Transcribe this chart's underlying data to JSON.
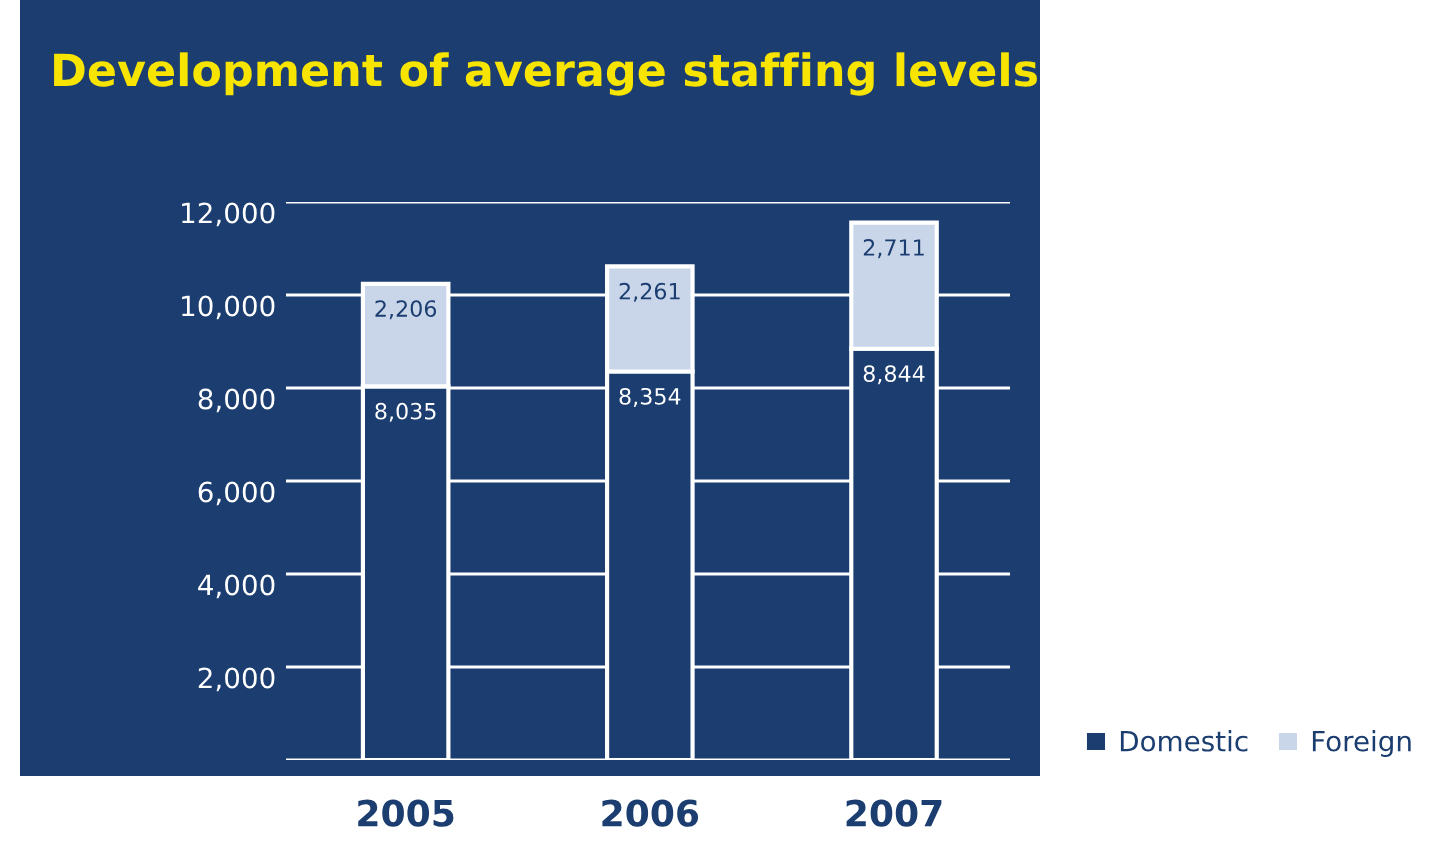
{
  "chart_data": {
    "type": "bar",
    "stacked": true,
    "title": "Development of average staffing levels",
    "categories": [
      "2005",
      "2006",
      "2007"
    ],
    "series": [
      {
        "name": "Domestic",
        "color": "#1b3d70",
        "values": [
          8035,
          8354,
          8844
        ],
        "value_labels": [
          "8,035",
          "8,354",
          "8,844"
        ]
      },
      {
        "name": "Foreign",
        "color": "#c9d6ea",
        "values": [
          2206,
          2261,
          2711
        ],
        "value_labels": [
          "2,206",
          "2,261",
          "2,711"
        ]
      }
    ],
    "ylim": [
      0,
      12000
    ],
    "yticks": [
      {
        "value": 0,
        "label": null
      },
      {
        "value": 2000,
        "label": "2,000"
      },
      {
        "value": 4000,
        "label": "4,000"
      },
      {
        "value": 6000,
        "label": "6,000"
      },
      {
        "value": 8000,
        "label": "8,000"
      },
      {
        "value": 10000,
        "label": "10,000"
      },
      {
        "value": 12000,
        "label": "12,000"
      }
    ],
    "grid": "y",
    "legend": "bottom right"
  }
}
